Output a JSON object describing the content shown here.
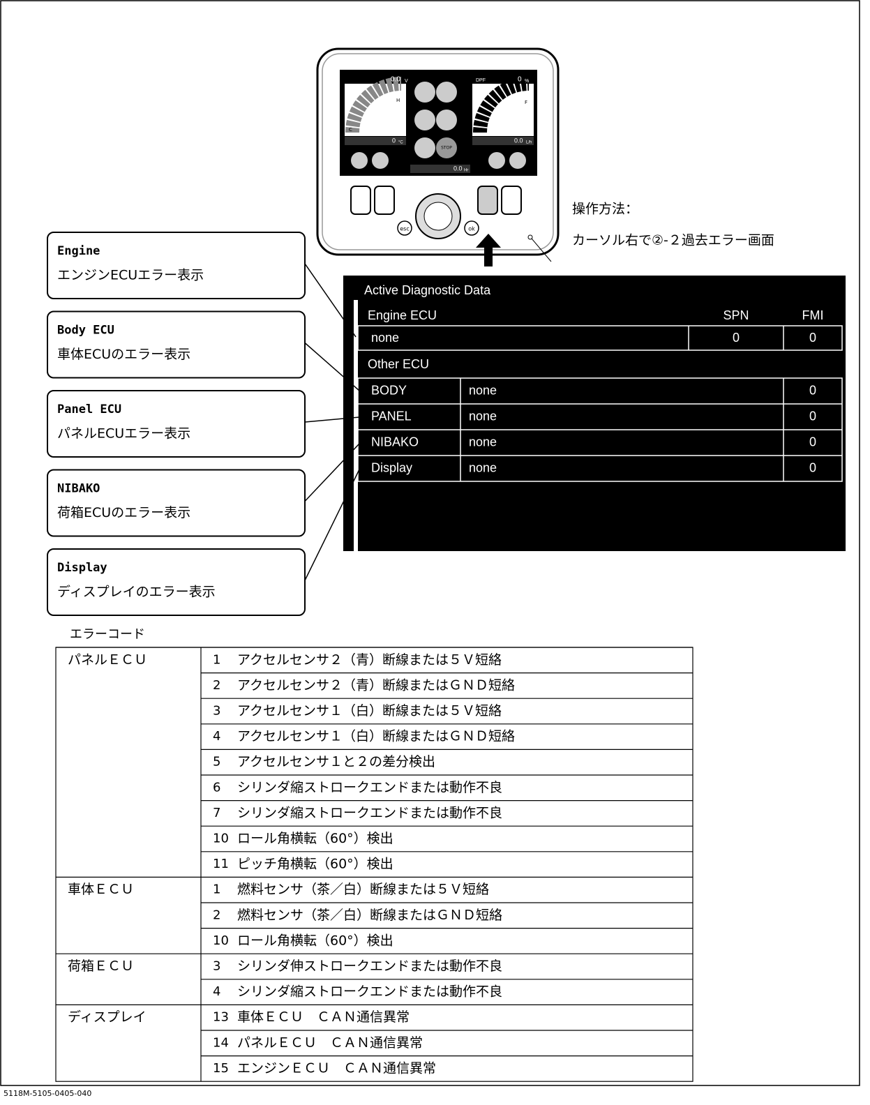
{
  "device": {
    "screen": {
      "volts": "0.0",
      "volt_unit": "V",
      "gauge_h": "H",
      "gauge_c": "C",
      "temp": "0",
      "temp_unit": "°C",
      "dpf": "DPF",
      "dpf_value": "0",
      "dpf_unit": "%",
      "gauge_f": "F",
      "gauge_e": "E",
      "fuel_rate": "0.0",
      "fuel_unit": "L/h",
      "stop": "STOP",
      "hours": "0.0",
      "hours_unit": "Hr"
    },
    "buttons": {
      "esc": "esc",
      "ok": "ok"
    }
  },
  "instruction": [
    "操作方法：",
    "カーソル右で②-２過去エラー画面"
  ],
  "callouts": [
    {
      "title": "Engine",
      "text": "エンジンECUエラー表示"
    },
    {
      "title": "Body ECU",
      "text": "車体ECUのエラー表示"
    },
    {
      "title": "Panel ECU",
      "text": "パネルECUエラー表示"
    },
    {
      "title": "NIBAKO",
      "text": "荷箱ECUのエラー表示"
    },
    {
      "title": "Display",
      "text": "ディスプレイのエラー表示"
    }
  ],
  "diagnostic": {
    "title": "Active Diagnostic Data",
    "engine_header": "Engine ECU",
    "spn_header": "SPN",
    "fmi_header": "FMI",
    "engine_row": [
      "none",
      "0",
      "0"
    ],
    "other_header": "Other ECU",
    "other_rows": [
      [
        "BODY",
        "none",
        "0"
      ],
      [
        "PANEL",
        "none",
        "0"
      ],
      [
        "NIBAKO",
        "none",
        "0"
      ],
      [
        "Display",
        "none",
        "0"
      ]
    ]
  },
  "error_table": {
    "caption": "エラーコード",
    "groups": [
      {
        "ecu": "パネルＥＣＵ",
        "rows": [
          [
            "1",
            "アクセルセンサ２（青）断線または５Ｖ短絡"
          ],
          [
            "2",
            "アクセルセンサ２（青）断線またはＧＮＤ短絡"
          ],
          [
            "3",
            "アクセルセンサ１（白）断線または５Ｖ短絡"
          ],
          [
            "4",
            "アクセルセンサ１（白）断線またはＧＮＤ短絡"
          ],
          [
            "5",
            "アクセルセンサ１と２の差分検出"
          ],
          [
            "6",
            "シリンダ縮ストロークエンドまたは動作不良"
          ],
          [
            "7",
            "シリンダ縮ストロークエンドまたは動作不良"
          ],
          [
            "10",
            "ロール角横転（60°）検出"
          ],
          [
            "11",
            "ピッチ角横転（60°）検出"
          ]
        ]
      },
      {
        "ecu": "車体ＥＣＵ",
        "rows": [
          [
            "1",
            "燃料センサ（茶／白）断線または５Ｖ短絡"
          ],
          [
            "2",
            "燃料センサ（茶／白）断線またはＧＮＤ短絡"
          ],
          [
            "10",
            "ロール角横転（60°）検出"
          ]
        ]
      },
      {
        "ecu": "荷箱ＥＣＵ",
        "rows": [
          [
            "3",
            "シリンダ伸ストロークエンドまたは動作不良"
          ],
          [
            "4",
            "シリンダ縮ストロークエンドまたは動作不良"
          ]
        ]
      },
      {
        "ecu": "ディスプレイ",
        "rows": [
          [
            "13",
            "車体ＥＣＵ　ＣＡＮ通信異常"
          ],
          [
            "14",
            "パネルＥＣＵ　ＣＡＮ通信異常"
          ],
          [
            "15",
            "エンジンＥＣＵ　ＣＡＮ通信異常"
          ]
        ]
      }
    ]
  },
  "footer": "5118M-5105-0405-040"
}
